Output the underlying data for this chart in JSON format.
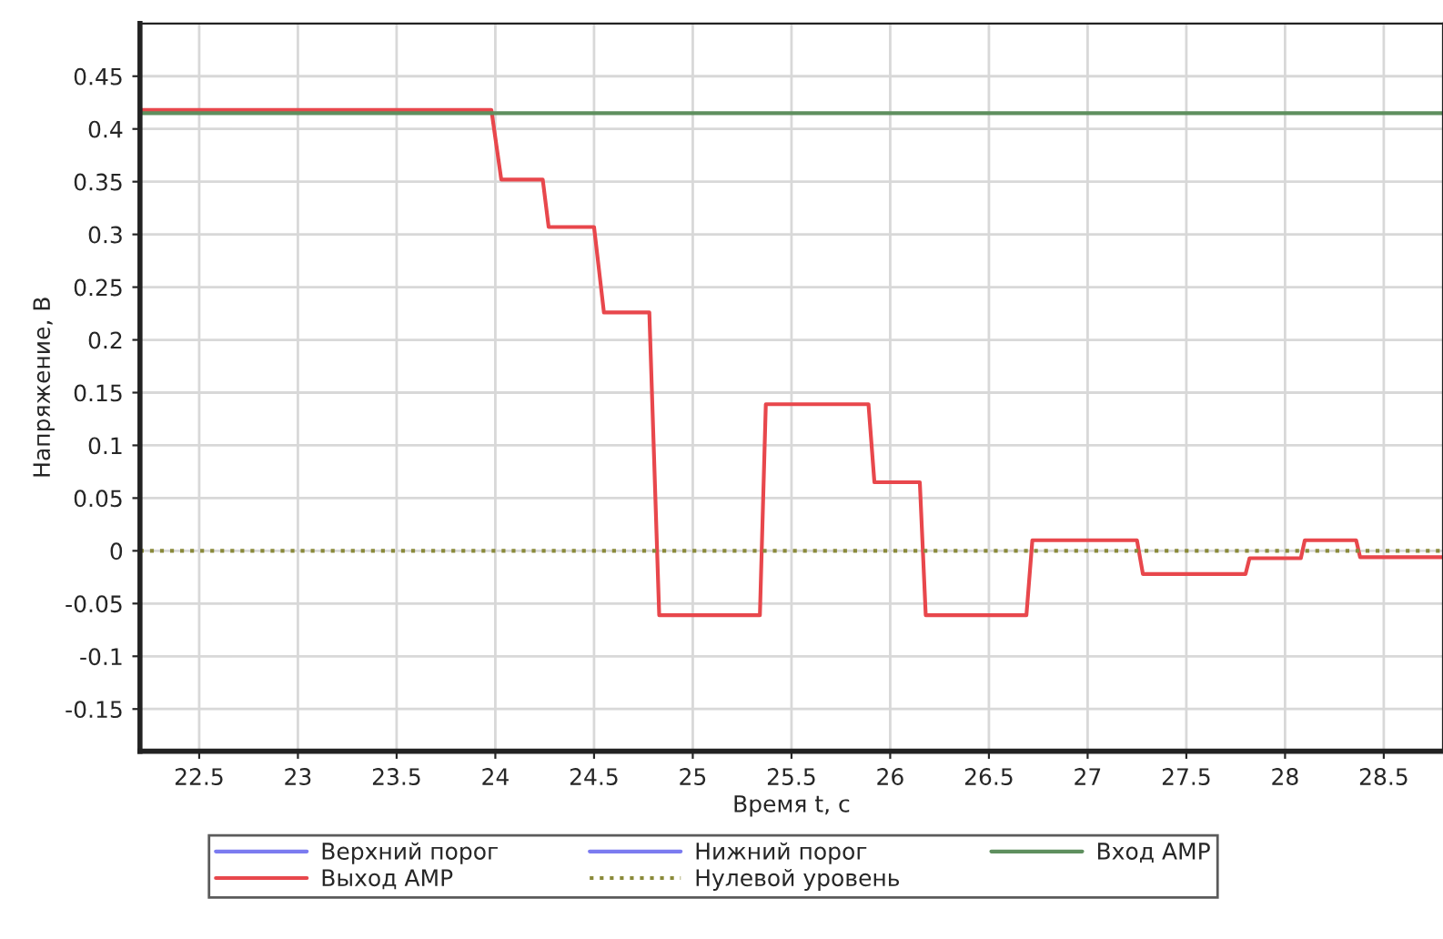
{
  "chart_data": {
    "type": "line",
    "xlabel": "Время t, с",
    "ylabel": "Напряжение, В",
    "xlim": [
      22.2,
      28.8
    ],
    "ylim": [
      -0.19,
      0.5
    ],
    "xticks": [
      22.5,
      23,
      23.5,
      24,
      24.5,
      25,
      25.5,
      26,
      26.5,
      27,
      27.5,
      28,
      28.5
    ],
    "yticks": [
      -0.15,
      -0.1,
      -0.05,
      0,
      0.05,
      0.1,
      0.15,
      0.2,
      0.25,
      0.3,
      0.35,
      0.4,
      0.45
    ],
    "grid": true,
    "legend": "bottom",
    "series": [
      {
        "name": "Верхний порог",
        "color": "#7b7bf0"
      },
      {
        "name": "Выход AMP",
        "color": "#e8474c",
        "x": [
          22.2,
          23.98,
          24.03,
          24.24,
          24.27,
          24.5,
          24.55,
          24.78,
          24.83,
          25.34,
          25.37,
          25.89,
          25.92,
          26.15,
          26.18,
          26.69,
          26.72,
          27.25,
          27.28,
          27.8,
          27.82,
          28.08,
          28.1,
          28.36,
          28.38,
          28.8
        ],
        "values": [
          0.418,
          0.418,
          0.352,
          0.352,
          0.307,
          0.307,
          0.226,
          0.226,
          -0.061,
          -0.061,
          0.139,
          0.139,
          0.065,
          0.065,
          -0.061,
          -0.061,
          0.01,
          0.01,
          -0.022,
          -0.022,
          -0.007,
          -0.007,
          0.01,
          0.01,
          -0.006,
          -0.006
        ]
      },
      {
        "name": "Нижний порог",
        "color": "#7b7bf0"
      },
      {
        "name": "Нулевой уровень",
        "color": "#8a8a3a",
        "line_style": "dotted",
        "x": [
          22.2,
          28.8
        ],
        "values": [
          0,
          0
        ]
      },
      {
        "name": "Вход AMP",
        "color": "#5e8f5e",
        "x": [
          22.2,
          28.8
        ],
        "values": [
          0.415,
          0.415
        ]
      }
    ]
  }
}
